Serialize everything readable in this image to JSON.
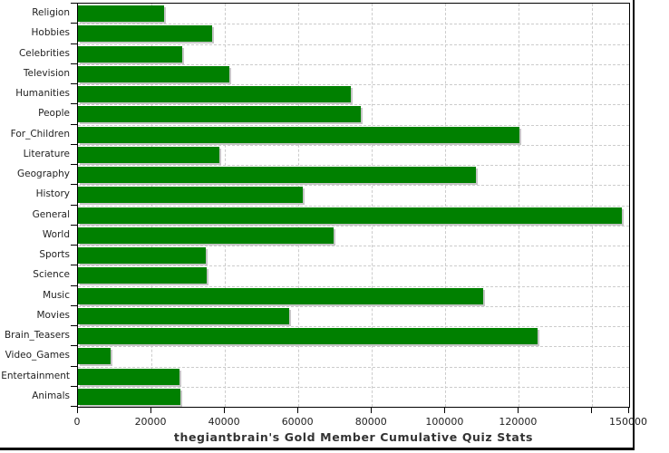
{
  "chart_data": {
    "type": "bar",
    "orientation": "horizontal",
    "title": "thegiantbrain's Gold Member Cumulative Quiz Stats",
    "categories": [
      "Religion",
      "Hobbies",
      "Celebrities",
      "Television",
      "Humanities",
      "People",
      "For_Children",
      "Literature",
      "Geography",
      "History",
      "General",
      "World",
      "Sports",
      "Science",
      "Music",
      "Movies",
      "Brain_Teasers",
      "Video_Games",
      "Entertainment",
      "Animals"
    ],
    "values": [
      23400,
      36500,
      28300,
      41100,
      74200,
      76900,
      120200,
      38400,
      108400,
      61300,
      148100,
      69500,
      34700,
      35000,
      110400,
      57600,
      125200,
      8900,
      27600,
      27800
    ],
    "xlim": [
      0,
      150000
    ],
    "x_ticks": [
      {
        "value": 0,
        "label": "0"
      },
      {
        "value": 20000,
        "label": "20000"
      },
      {
        "value": 40000,
        "label": "40000"
      },
      {
        "value": 60000,
        "label": "60000"
      },
      {
        "value": 80000,
        "label": "80000"
      },
      {
        "value": 100000,
        "label": "100000"
      },
      {
        "value": 120000,
        "label": "120000"
      },
      {
        "value": 140000,
        "label": ""
      },
      {
        "value": 150000,
        "label": "150000"
      }
    ],
    "grid": true,
    "legend": "none",
    "bar_color": "#008000",
    "shadow_color": "#c6c6c6",
    "gridline_color": "#cccccc",
    "frame_color": "#000000",
    "background_color": "#ffffff"
  }
}
